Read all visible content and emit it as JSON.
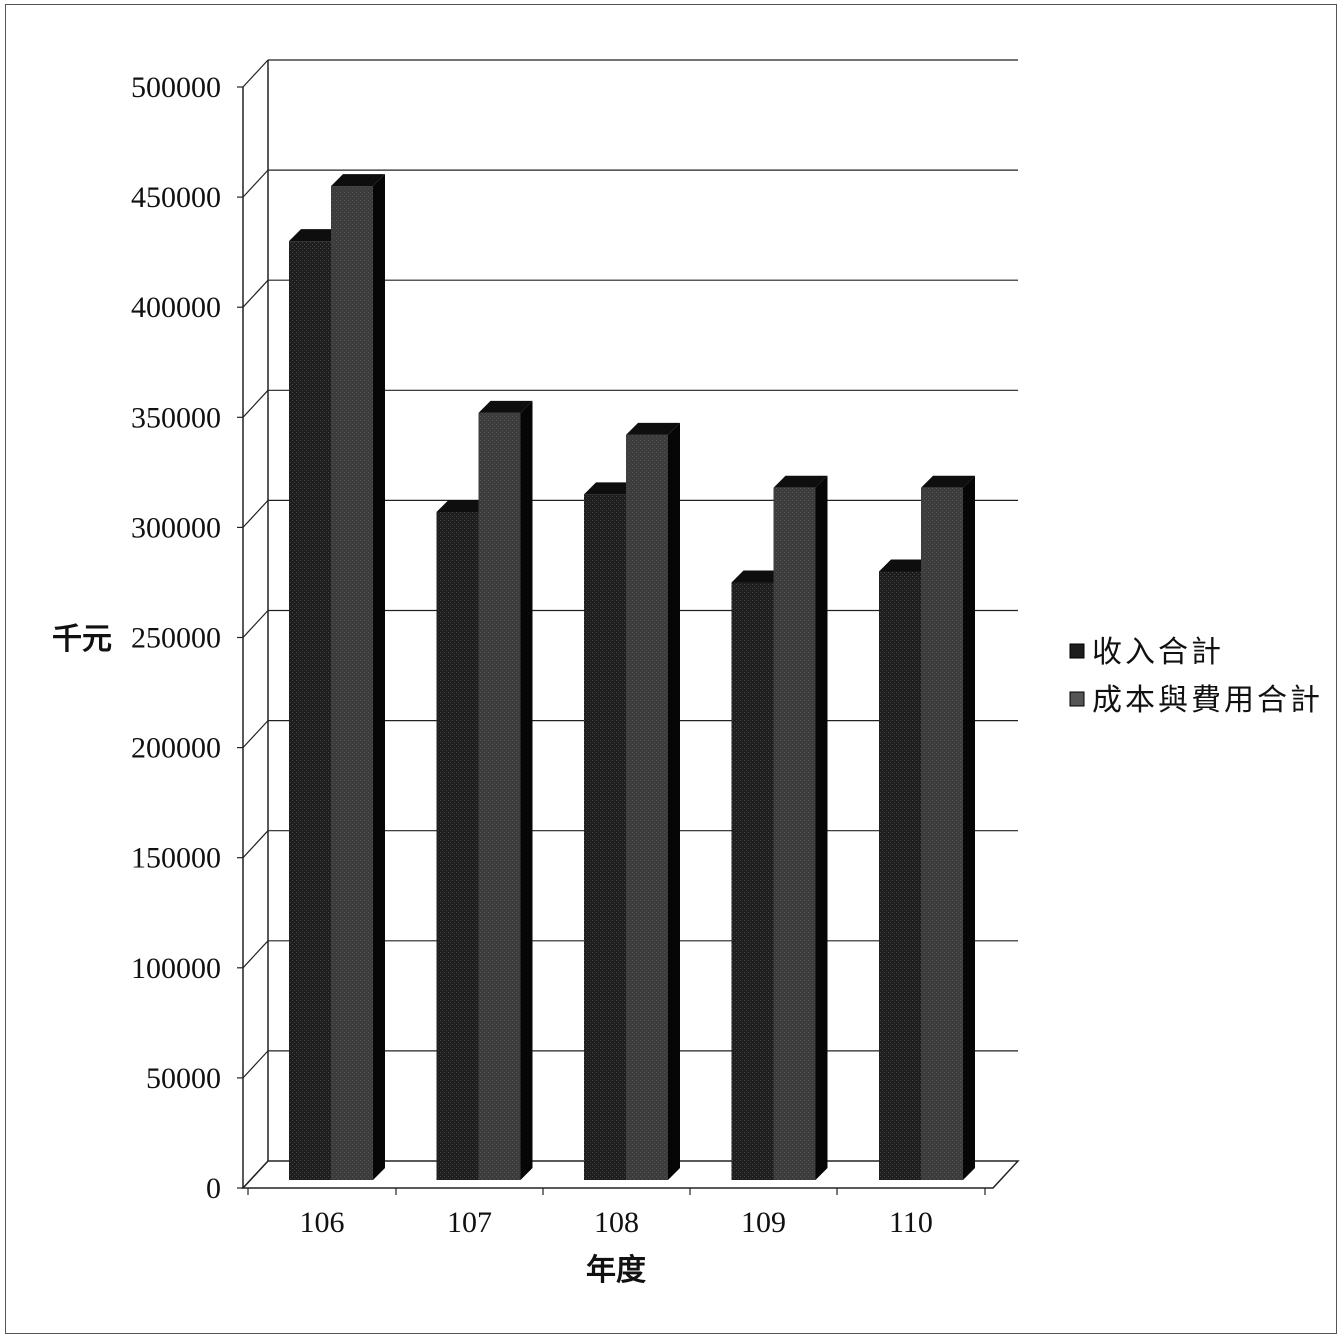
{
  "chart_data": {
    "type": "bar",
    "title": "",
    "xlabel": "年度",
    "ylabel": "千元",
    "categories": [
      "106",
      "107",
      "108",
      "109",
      "110"
    ],
    "series": [
      {
        "name": "收入合計",
        "values": [
          430000,
          307000,
          315000,
          275000,
          280000
        ],
        "color": "#1e1e1e"
      },
      {
        "name": "成本與費用合計",
        "values": [
          455000,
          352000,
          342000,
          318000,
          318000
        ],
        "color": "#3c3c3c"
      }
    ],
    "ylim": [
      0,
      500000
    ],
    "yticks": [
      "0",
      "50000",
      "100000",
      "150000",
      "200000",
      "250000",
      "300000",
      "350000",
      "400000",
      "450000",
      "500000"
    ],
    "grid": true,
    "legend_position": "right",
    "style": "3d-clustered-column"
  }
}
